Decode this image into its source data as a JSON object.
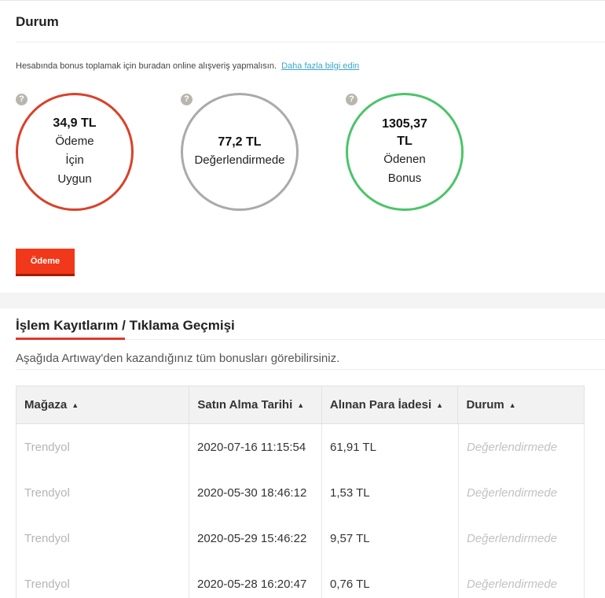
{
  "status_section": {
    "title": "Durum",
    "info_text": "Hesabında bonus toplamak için buradan online alışveriş yapmalısın.",
    "info_link": "Daha fazla bilgi edin",
    "help_glyph": "?",
    "circles": [
      {
        "amount": "34,9 TL",
        "label_lines": [
          "Ödeme",
          "İçin",
          "Uygun"
        ],
        "color": "#d9412b"
      },
      {
        "amount": "77,2 TL",
        "label_lines": [
          "Değerlendirmede"
        ],
        "color": "#aaaaaa"
      },
      {
        "amount_lines": [
          "1305,37",
          "TL"
        ],
        "label_lines": [
          "Ödenen",
          "Bonus"
        ],
        "color": "#4cc46a"
      }
    ],
    "pay_button": "Ödeme"
  },
  "history_section": {
    "title": "İşlem Kayıtlarım / Tıklama Geçmişi",
    "subtitle": "Aşağıda Artıway'den kazandığınız tüm bonusları görebilirsiniz.",
    "sort_glyph": "▲",
    "columns": [
      "Mağaza",
      "Satın Alma Tarihi",
      "Alınan Para İadesi",
      "Durum"
    ],
    "rows": [
      {
        "store": "Trendyol",
        "date": "2020-07-16 11:15:54",
        "amount": "61,91 TL",
        "status": "Değerlendirmede"
      },
      {
        "store": "Trendyol",
        "date": "2020-05-30 18:46:12",
        "amount": "1,53 TL",
        "status": "Değerlendirmede"
      },
      {
        "store": "Trendyol",
        "date": "2020-05-29 15:46:22",
        "amount": "9,57 TL",
        "status": "Değerlendirmede"
      },
      {
        "store": "Trendyol",
        "date": "2020-05-28 16:20:47",
        "amount": "0,76 TL",
        "status": "Değerlendirmede"
      }
    ]
  },
  "colors": {
    "accent_red": "#f2381a",
    "link_blue": "#3aa6c9",
    "help_icon_gray": "#b9b7ad"
  },
  "icons": [
    "help-icon",
    "sort-up-icon"
  ]
}
